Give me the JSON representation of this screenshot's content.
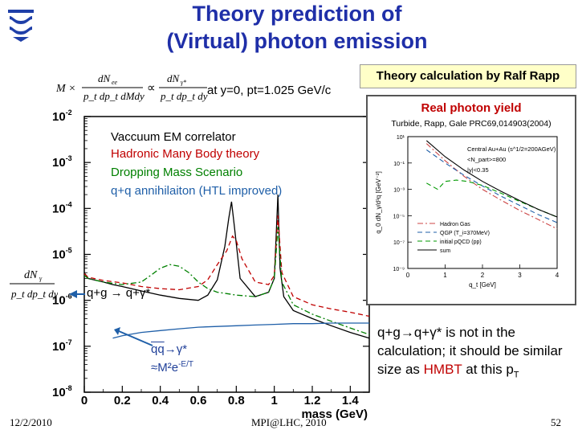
{
  "slide": {
    "title_line1": "Theory prediction of",
    "title_line2": "(Virtual) photon emission",
    "formula_condition": "at y=0, pt=1.025 GeV/c",
    "formula_lhs": "M × dN_ee/(p_t dp_t dM dy) ∝ dN_γ*/(p_t dp_t dy)",
    "yaxis_expression": "dN_γ/(p_t dp_t dy)",
    "rapp_label": "Theory calculation by Ralf Rapp",
    "note_prefix": "q+g",
    "note_mid": "q+γ* is not in the calculation; it should be similar size as",
    "note_red": "HMBT",
    "note_suffix": "at this p",
    "note_suffix_sub": "T",
    "footer_date": "12/2/2010",
    "footer_center": "MPI@LHC, 2010",
    "footer_page": "52",
    "logo_icon": "university-logo-icon"
  },
  "chart_data": [
    {
      "type": "line",
      "xlabel": "mass (GeV)",
      "ylabel": "",
      "xlim": [
        0,
        1.5
      ],
      "ylim": [
        1e-08,
        0.01
      ],
      "yscale": "log",
      "xticks": [
        "0",
        "0.2",
        "0.4",
        "0.6",
        "0.8",
        "1",
        "1.2",
        "1.4"
      ],
      "yticks": [
        {
          "base": "10",
          "exp": "-2",
          "value": 0.01
        },
        {
          "base": "10",
          "exp": "-3",
          "value": 0.001
        },
        {
          "base": "10",
          "exp": "-4",
          "value": 0.0001
        },
        {
          "base": "10",
          "exp": "-5",
          "value": 1e-05
        },
        {
          "base": "10",
          "exp": "-6",
          "value": 1e-06
        },
        {
          "base": "10",
          "exp": "-7",
          "value": 1e-07
        },
        {
          "base": "10",
          "exp": "-8",
          "value": 1e-08
        }
      ],
      "legend": [
        {
          "label": "Vaccuum EM correlator",
          "color": "#000000"
        },
        {
          "label": "Hadronic Many Body theory",
          "color": "#c00000"
        },
        {
          "label": "Dropping Mass Scenario",
          "color": "#008000"
        },
        {
          "label": "q+q annihilaiton (HTL improved)",
          "color": "#1f5fa8"
        }
      ],
      "annotations": {
        "qg": "q+g",
        "qg_arrow": "→",
        "qg_product": "q+γ*",
        "qq": "qq",
        "qq_arrow": "→",
        "qq_product": "γ*",
        "scaling": "≈M²e",
        "scaling_exp": "-E/T"
      },
      "series": [
        {
          "color": "#000000",
          "style": "solid",
          "x": [
            0.0,
            0.02,
            0.05,
            0.1,
            0.15,
            0.2,
            0.3,
            0.4,
            0.5,
            0.6,
            0.65,
            0.7,
            0.74,
            0.76,
            0.775,
            0.79,
            0.82,
            0.9,
            0.97,
            1.0,
            1.019,
            1.03,
            1.05,
            1.1,
            1.2,
            1.3,
            1.4,
            1.5
          ],
          "y": [
            4e-06,
            3e-06,
            2.8e-06,
            2.5e-06,
            2.2e-06,
            2e-06,
            1.6e-06,
            1.3e-06,
            1.1e-06,
            1e-06,
            1.3e-06,
            2.8e-06,
            1.5e-05,
            6e-05,
            0.00014,
            4e-05,
            3e-06,
            1.2e-06,
            1.5e-06,
            3e-06,
            0.0002,
            5e-06,
            1.2e-06,
            6e-07,
            4e-07,
            2.8e-07,
            2e-07,
            1.5e-07
          ]
        },
        {
          "color": "#c00000",
          "style": "dashed",
          "x": [
            0.0,
            0.02,
            0.05,
            0.1,
            0.2,
            0.3,
            0.4,
            0.5,
            0.6,
            0.65,
            0.7,
            0.75,
            0.78,
            0.8,
            0.83,
            0.9,
            0.97,
            1.0,
            1.019,
            1.04,
            1.1,
            1.2,
            1.3,
            1.4,
            1.5
          ],
          "y": [
            3.8e-06,
            3.2e-06,
            3e-06,
            2.7e-06,
            2.4e-06,
            2e-06,
            1.8e-06,
            1.7e-06,
            2e-06,
            2.8e-06,
            6e-06,
            1.2e-05,
            2.5e-05,
            2e-05,
            8e-06,
            2.5e-06,
            2.2e-06,
            3.5e-06,
            7e-05,
            4e-06,
            1.2e-06,
            8e-07,
            6.5e-07,
            5.5e-07,
            4.5e-07
          ]
        },
        {
          "color": "#008000",
          "style": "dashdot",
          "x": [
            0.0,
            0.02,
            0.05,
            0.1,
            0.2,
            0.3,
            0.35,
            0.4,
            0.45,
            0.5,
            0.55,
            0.6,
            0.65,
            0.7,
            0.75,
            0.8,
            0.9,
            0.97,
            1.0,
            1.019,
            1.04,
            1.1,
            1.2,
            1.3,
            1.4,
            1.5
          ],
          "y": [
            3.5e-06,
            3e-06,
            2.8e-06,
            2.5e-06,
            2.2e-06,
            2.5e-06,
            3.5e-06,
            5e-06,
            6e-06,
            5.5e-06,
            4e-06,
            2.5e-06,
            1.8e-06,
            1.5e-06,
            1.4e-06,
            1.3e-06,
            1.2e-06,
            1.5e-06,
            3e-06,
            4e-05,
            2.5e-06,
            8e-07,
            5e-07,
            3.5e-07,
            2.5e-07,
            1.8e-07
          ]
        },
        {
          "color": "#1f5fa8",
          "style": "solid",
          "x": [
            0.15,
            0.2,
            0.3,
            0.4,
            0.5,
            0.6,
            0.7,
            0.8,
            0.9,
            1.0,
            1.1,
            1.2,
            1.3,
            1.4,
            1.5
          ],
          "y": [
            1.5e-07,
            1.7e-07,
            2e-07,
            2.2e-07,
            2.4e-07,
            2.6e-07,
            2.7e-07,
            2.8e-07,
            2.9e-07,
            3e-07,
            3.1e-07,
            3.1e-07,
            3.2e-07,
            3.2e-07,
            3.2e-07
          ]
        }
      ]
    },
    {
      "type": "line",
      "title": "Real photon yield",
      "subtitle": "Turbide, Rapp, Gale PRC69,014903(2004)",
      "xlabel": "q_t [GeV]",
      "ylabel": "q_0 dN_γ/d³q [GeV⁻²]",
      "xlim": [
        0,
        4
      ],
      "ylim": [
        1e-09,
        10
      ],
      "yscale": "log",
      "xticks": [
        "0",
        "1",
        "2",
        "3",
        "4"
      ],
      "yticks": [
        "10¹",
        "10⁻¹",
        "10⁻³",
        "10⁻⁵",
        "10⁻⁷",
        "10⁻⁹"
      ],
      "text_lines": [
        "Central Au+Au (s^1/2=200AGeV)",
        "<N_part>=800",
        "|y|<0.35"
      ],
      "legend": [
        {
          "label": "Hadron Gas",
          "color": "#cc4444",
          "style": "dashdot"
        },
        {
          "label": "QGP (T_i=370MeV)",
          "color": "#1f5fa8",
          "style": "dashed"
        },
        {
          "label": "initial pQCD (pp)",
          "color": "#009900",
          "style": "dashed"
        },
        {
          "label": "sum",
          "color": "#000000",
          "style": "solid"
        }
      ],
      "series": [
        {
          "name": "Hadron Gas",
          "x": [
            0.5,
            1,
            1.5,
            2,
            2.5,
            3,
            3.5,
            4
          ],
          "y": [
            3,
            0.15,
            0.01,
            0.001,
            0.00015,
            2.5e-05,
            5e-06,
            1e-06
          ]
        },
        {
          "name": "QGP (T_i=370MeV)",
          "x": [
            0.5,
            1,
            1.5,
            2,
            2.5,
            3,
            3.5,
            4
          ],
          "y": [
            1,
            0.1,
            0.012,
            0.0018,
            0.0003,
            6e-05,
            1.2e-05,
            3e-06
          ]
        },
        {
          "name": "initial pQCD (pp)",
          "x": [
            0.5,
            0.8,
            1,
            1.3,
            1.6,
            2,
            2.5,
            3,
            3.5,
            4
          ],
          "y": [
            0.003,
            0.001,
            0.004,
            0.005,
            0.004,
            0.002,
            0.0005,
            0.00012,
            3e-05,
            8e-06
          ]
        },
        {
          "name": "sum",
          "x": [
            0.5,
            1,
            1.5,
            2,
            2.5,
            3,
            3.5,
            4
          ],
          "y": [
            5,
            0.3,
            0.03,
            0.004,
            0.0007,
            0.00014,
            3e-05,
            8e-06
          ]
        }
      ]
    }
  ]
}
